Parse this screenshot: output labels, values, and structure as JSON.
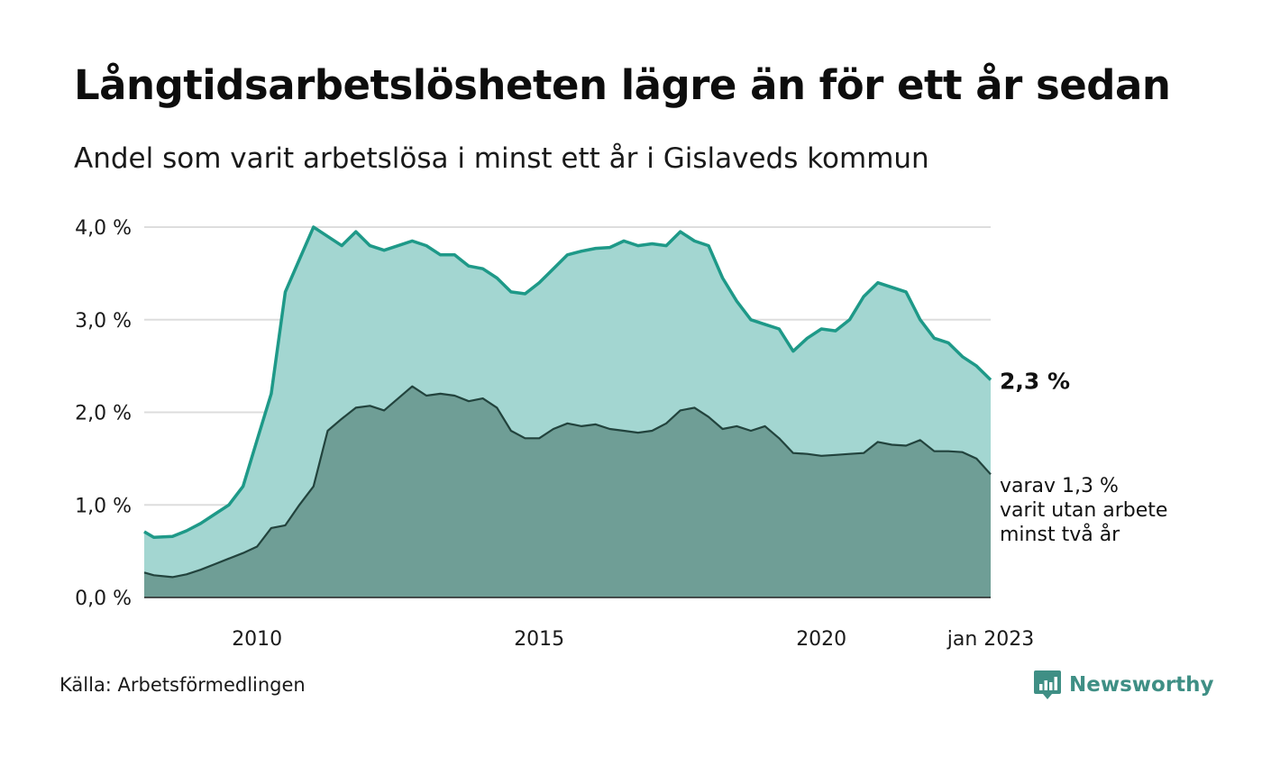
{
  "header": {
    "title": "Långtidsarbetslösheten lägre än för ett år sedan",
    "subtitle": "Andel som varit arbetslösa i minst ett år i Gislaveds kommun"
  },
  "footer": {
    "source": "Källa: Arbetsförmedlingen",
    "brand": "Newsworthy"
  },
  "colors": {
    "area_total_fill": "#a3d6d1",
    "area_total_line": "#1e9988",
    "area_long_fill": "#6f9e96",
    "area_long_line": "#22433d",
    "grid": "#dddddd",
    "logo": "#3f8f85"
  },
  "chart_data": {
    "type": "area",
    "ylim": [
      0,
      4.0
    ],
    "xlim": [
      2008.0,
      2023.0
    ],
    "y_ticks": [
      "0,0 %",
      "1,0 %",
      "2,0 %",
      "3,0 %",
      "4,0 %"
    ],
    "x_ticks": [
      {
        "value": 2010.0,
        "label": "2010"
      },
      {
        "value": 2015.0,
        "label": "2015"
      },
      {
        "value": 2020.0,
        "label": "2020"
      },
      {
        "value": 2023.0,
        "label": "jan 2023"
      }
    ],
    "grid": true,
    "series": [
      {
        "id": "total",
        "points": [
          [
            2008.0,
            0.71
          ],
          [
            2008.17,
            0.65
          ],
          [
            2008.5,
            0.66
          ],
          [
            2008.75,
            0.72
          ],
          [
            2009.0,
            0.8
          ],
          [
            2009.25,
            0.9
          ],
          [
            2009.5,
            1.0
          ],
          [
            2009.75,
            1.2
          ],
          [
            2010.0,
            1.7
          ],
          [
            2010.25,
            2.2
          ],
          [
            2010.5,
            3.3
          ],
          [
            2010.75,
            3.65
          ],
          [
            2011.0,
            4.0
          ],
          [
            2011.25,
            3.9
          ],
          [
            2011.5,
            3.8
          ],
          [
            2011.75,
            3.95
          ],
          [
            2012.0,
            3.8
          ],
          [
            2012.25,
            3.75
          ],
          [
            2012.5,
            3.8
          ],
          [
            2012.75,
            3.85
          ],
          [
            2013.0,
            3.8
          ],
          [
            2013.25,
            3.7
          ],
          [
            2013.5,
            3.7
          ],
          [
            2013.75,
            3.58
          ],
          [
            2014.0,
            3.55
          ],
          [
            2014.25,
            3.45
          ],
          [
            2014.5,
            3.3
          ],
          [
            2014.75,
            3.28
          ],
          [
            2015.0,
            3.4
          ],
          [
            2015.25,
            3.55
          ],
          [
            2015.5,
            3.7
          ],
          [
            2015.75,
            3.74
          ],
          [
            2016.0,
            3.77
          ],
          [
            2016.25,
            3.78
          ],
          [
            2016.5,
            3.85
          ],
          [
            2016.75,
            3.8
          ],
          [
            2017.0,
            3.82
          ],
          [
            2017.25,
            3.8
          ],
          [
            2017.5,
            3.95
          ],
          [
            2017.75,
            3.85
          ],
          [
            2018.0,
            3.8
          ],
          [
            2018.25,
            3.45
          ],
          [
            2018.5,
            3.2
          ],
          [
            2018.75,
            3.0
          ],
          [
            2019.0,
            2.95
          ],
          [
            2019.25,
            2.9
          ],
          [
            2019.5,
            2.66
          ],
          [
            2019.75,
            2.8
          ],
          [
            2020.0,
            2.9
          ],
          [
            2020.25,
            2.88
          ],
          [
            2020.5,
            3.0
          ],
          [
            2020.75,
            3.25
          ],
          [
            2021.0,
            3.4
          ],
          [
            2021.25,
            3.35
          ],
          [
            2021.5,
            3.3
          ],
          [
            2021.75,
            3.0
          ],
          [
            2022.0,
            2.8
          ],
          [
            2022.25,
            2.75
          ],
          [
            2022.5,
            2.6
          ],
          [
            2022.75,
            2.5
          ],
          [
            2023.0,
            2.35
          ]
        ]
      },
      {
        "id": "long",
        "points": [
          [
            2008.0,
            0.27
          ],
          [
            2008.17,
            0.24
          ],
          [
            2008.5,
            0.22
          ],
          [
            2008.75,
            0.25
          ],
          [
            2009.0,
            0.3
          ],
          [
            2009.25,
            0.36
          ],
          [
            2009.5,
            0.42
          ],
          [
            2009.75,
            0.48
          ],
          [
            2010.0,
            0.55
          ],
          [
            2010.25,
            0.75
          ],
          [
            2010.5,
            0.78
          ],
          [
            2010.75,
            1.0
          ],
          [
            2011.0,
            1.2
          ],
          [
            2011.25,
            1.8
          ],
          [
            2011.5,
            1.93
          ],
          [
            2011.75,
            2.05
          ],
          [
            2012.0,
            2.07
          ],
          [
            2012.25,
            2.02
          ],
          [
            2012.5,
            2.15
          ],
          [
            2012.75,
            2.28
          ],
          [
            2013.0,
            2.18
          ],
          [
            2013.25,
            2.2
          ],
          [
            2013.5,
            2.18
          ],
          [
            2013.75,
            2.12
          ],
          [
            2014.0,
            2.15
          ],
          [
            2014.25,
            2.05
          ],
          [
            2014.5,
            1.8
          ],
          [
            2014.75,
            1.72
          ],
          [
            2015.0,
            1.72
          ],
          [
            2015.25,
            1.82
          ],
          [
            2015.5,
            1.88
          ],
          [
            2015.75,
            1.85
          ],
          [
            2016.0,
            1.87
          ],
          [
            2016.25,
            1.82
          ],
          [
            2016.5,
            1.8
          ],
          [
            2016.75,
            1.78
          ],
          [
            2017.0,
            1.8
          ],
          [
            2017.25,
            1.88
          ],
          [
            2017.5,
            2.02
          ],
          [
            2017.75,
            2.05
          ],
          [
            2018.0,
            1.95
          ],
          [
            2018.25,
            1.82
          ],
          [
            2018.5,
            1.85
          ],
          [
            2018.75,
            1.8
          ],
          [
            2019.0,
            1.85
          ],
          [
            2019.25,
            1.72
          ],
          [
            2019.5,
            1.56
          ],
          [
            2019.75,
            1.55
          ],
          [
            2020.0,
            1.53
          ],
          [
            2020.25,
            1.54
          ],
          [
            2020.5,
            1.55
          ],
          [
            2020.75,
            1.56
          ],
          [
            2021.0,
            1.68
          ],
          [
            2021.25,
            1.65
          ],
          [
            2021.5,
            1.64
          ],
          [
            2021.75,
            1.7
          ],
          [
            2022.0,
            1.58
          ],
          [
            2022.25,
            1.58
          ],
          [
            2022.5,
            1.57
          ],
          [
            2022.75,
            1.5
          ],
          [
            2023.0,
            1.33
          ]
        ]
      }
    ],
    "annotations": {
      "total_end_label": "2,3 %",
      "long_end_label": [
        "varav 1,3 %",
        "varit utan arbete",
        "minst två år"
      ]
    }
  }
}
